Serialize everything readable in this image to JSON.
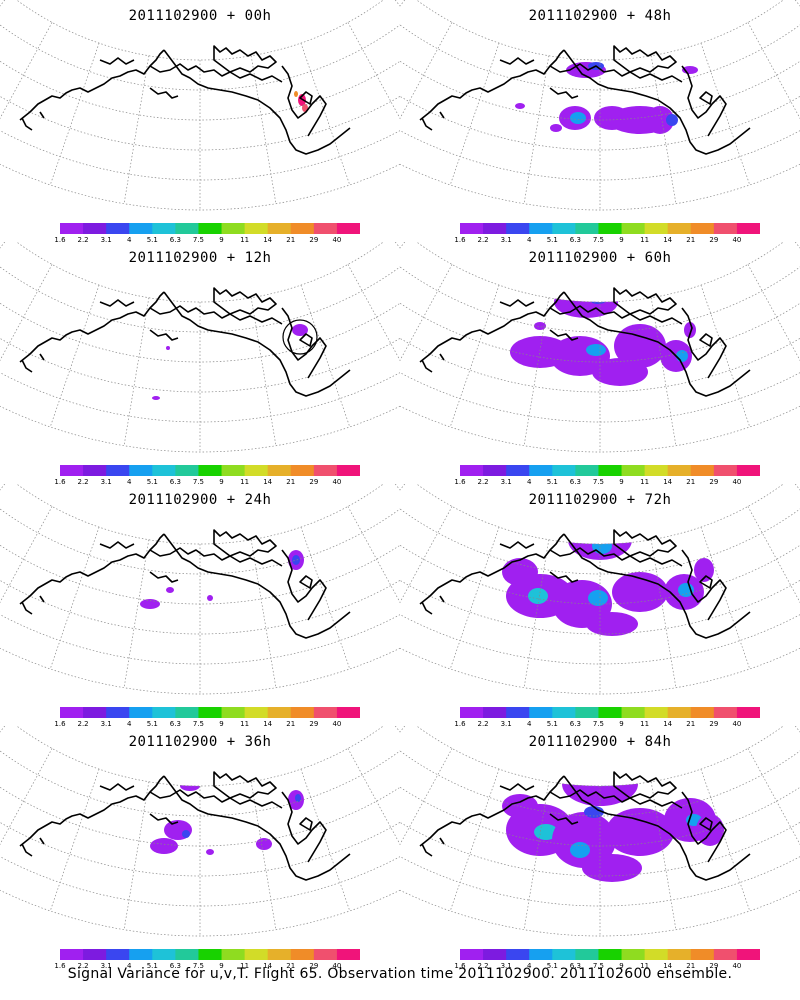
{
  "caption": "Signal Variance for u,v,T. Flight 65. Observation time 2011102900. 2011102600 ensemble.",
  "colorbar": {
    "labels": [
      "1.6",
      "2.2",
      "3.1",
      "4",
      "5.1",
      "6.3",
      "7.5",
      "9",
      "11",
      "14",
      "21",
      "29",
      "40"
    ],
    "colors": [
      "#a020f0",
      "#7d1be0",
      "#3a46f0",
      "#16a0f0",
      "#1ec2d8",
      "#22c99a",
      "#18d200",
      "#8fdc20",
      "#d2dc28",
      "#e6b02a",
      "#f08c28",
      "#f0506e",
      "#f0147a"
    ]
  },
  "panels": [
    {
      "title": "2011102900 + 00h",
      "lead_hours": 0
    },
    {
      "title": "2011102900 + 48h",
      "lead_hours": 48
    },
    {
      "title": "2011102900 + 12h",
      "lead_hours": 12
    },
    {
      "title": "2011102900 + 60h",
      "lead_hours": 60
    },
    {
      "title": "2011102900 + 24h",
      "lead_hours": 24
    },
    {
      "title": "2011102900 + 72h",
      "lead_hours": 72
    },
    {
      "title": "2011102900 + 36h",
      "lead_hours": 36
    },
    {
      "title": "2011102900 + 84h",
      "lead_hours": 84
    }
  ]
}
